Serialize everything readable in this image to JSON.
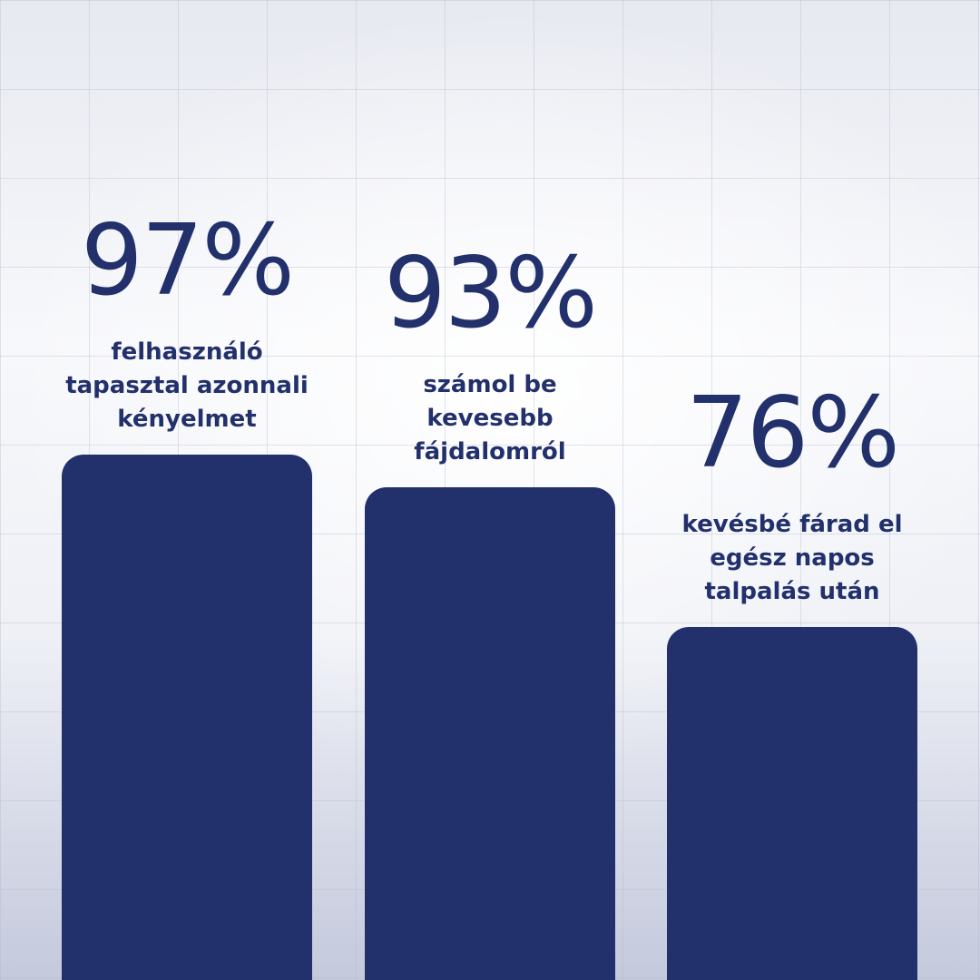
{
  "colors": {
    "bar": "#22306b",
    "text": "#22306b"
  },
  "chart_data": {
    "type": "bar",
    "ylim": [
      0,
      100
    ],
    "grid": true,
    "categories": [
      "felhasználó tapasztal azonnali kényelmet",
      "számol be kevesebb fájdalomról",
      "kevésbé fárad el egész napos talpalás után"
    ],
    "values": [
      97,
      93,
      76
    ],
    "value_labels": [
      "97%",
      "93%",
      "76%"
    ],
    "descriptions": [
      [
        "felhasználó",
        "tapasztal azonnali",
        "kényelmet"
      ],
      [
        "számol be",
        "kevesebb",
        "fájdalomról"
      ],
      [
        "kevésbé fárad el",
        "egész napos",
        "talpalás után"
      ]
    ]
  }
}
